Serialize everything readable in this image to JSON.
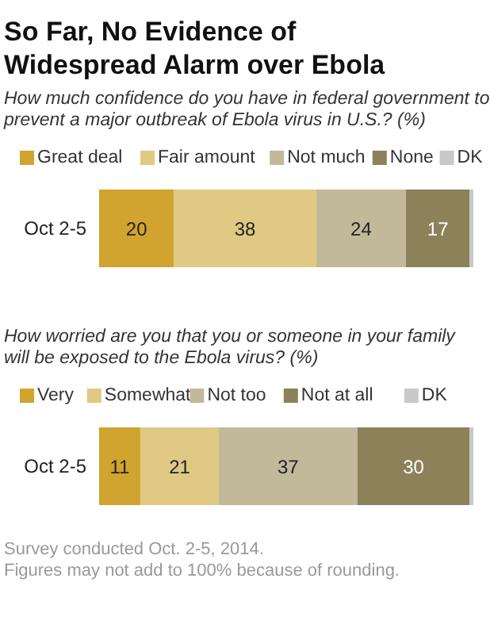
{
  "chart_data": [
    {
      "type": "bar",
      "orientation": "horizontal",
      "stacked": true,
      "title": "So Far, No Evidence of Widespread Alarm over Ebola",
      "subtitle": "How much confidence do you have in federal government to prevent a major outbreak of Ebola virus in U.S.? (%)",
      "categories": [
        "Oct 2-5"
      ],
      "legend": "top",
      "series": [
        {
          "name": "Great deal",
          "color": "#d1a32f",
          "values": [
            20
          ],
          "value_labels": [
            "20"
          ]
        },
        {
          "name": "Fair amount",
          "color": "#e0c983",
          "values": [
            38
          ],
          "value_labels": [
            "38"
          ]
        },
        {
          "name": "Not much",
          "color": "#c2b99b",
          "values": [
            24
          ],
          "value_labels": [
            "24"
          ]
        },
        {
          "name": "None",
          "color": "#8c8259",
          "values": [
            17
          ],
          "value_labels": [
            "17"
          ]
        },
        {
          "name": "DK",
          "color": "#c8c8c8",
          "values": [
            1
          ],
          "value_labels": [
            null
          ]
        }
      ]
    },
    {
      "type": "bar",
      "orientation": "horizontal",
      "stacked": true,
      "subtitle": "How worried are you that you or someone in your family will be exposed to the Ebola virus? (%)",
      "categories": [
        "Oct 2-5"
      ],
      "legend": "top",
      "series": [
        {
          "name": "Very",
          "color": "#d1a32f",
          "values": [
            11
          ],
          "value_labels": [
            "11"
          ]
        },
        {
          "name": "Somewhat",
          "color": "#e0c983",
          "values": [
            21
          ],
          "value_labels": [
            "21"
          ]
        },
        {
          "name": "Not too",
          "color": "#c2b99b",
          "values": [
            37
          ],
          "value_labels": [
            "37"
          ]
        },
        {
          "name": "Not at all",
          "color": "#8c8259",
          "values": [
            30
          ],
          "value_labels": [
            "30"
          ]
        },
        {
          "name": "DK",
          "color": "#c8c8c8",
          "values": [
            1
          ],
          "value_labels": [
            null
          ]
        }
      ],
      "annotations": [
        "Survey conducted Oct. 2-5, 2014.",
        "Figures may not add to 100% because of rounding."
      ]
    }
  ]
}
